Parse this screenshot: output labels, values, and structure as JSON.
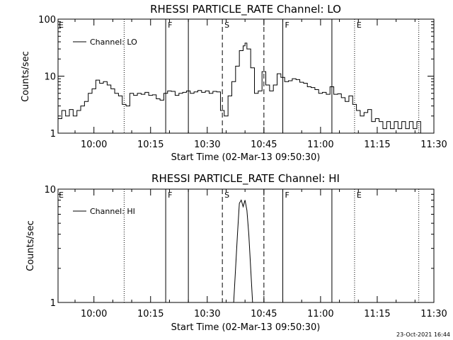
{
  "chart_data": [
    {
      "type": "line",
      "title": "RHESSI PARTICLE_RATE Channel: LO",
      "xlabel": "Start Time (02-Mar-13 09:50:30)",
      "ylabel": "Counts/sec",
      "yscale": "log",
      "ylim": [
        1,
        100
      ],
      "xlim": [
        "09:50:30",
        "11:30:00"
      ],
      "ytick_labels": [
        "1",
        "10",
        "100"
      ],
      "yticks": [
        1,
        10,
        100
      ],
      "xtick_labels": [
        "10:00",
        "10:15",
        "10:30",
        "10:45",
        "11:00",
        "11:15",
        "11:30"
      ],
      "legend": {
        "label": "Channel: LO",
        "placement": "top-left"
      },
      "markers": [
        {
          "label": "E",
          "time": "09:50:30",
          "style": "none"
        },
        {
          "label": "",
          "time": "10:08",
          "style": "dotted"
        },
        {
          "label": "F",
          "time": "10:19",
          "style": "solid"
        },
        {
          "label": "",
          "time": "10:25",
          "style": "solid"
        },
        {
          "label": "S",
          "time": "10:34",
          "style": "dashed"
        },
        {
          "label": "",
          "time": "10:45",
          "style": "dashed"
        },
        {
          "label": "F",
          "time": "10:50",
          "style": "solid"
        },
        {
          "label": "",
          "time": "11:03",
          "style": "solid"
        },
        {
          "label": "E",
          "time": "11:09",
          "style": "dotted"
        },
        {
          "label": "",
          "time": "11:26",
          "style": "dotted"
        }
      ],
      "series": [
        {
          "name": "Channel: LO",
          "x": [
            "09:50:30",
            "09:51:30",
            "09:52:30",
            "09:53:30",
            "09:54:30",
            "09:55:30",
            "09:56:30",
            "09:57:30",
            "09:58:30",
            "09:59:30",
            "10:00:30",
            "10:01:30",
            "10:02:30",
            "10:03:30",
            "10:04:30",
            "10:05:30",
            "10:06:30",
            "10:07:30",
            "10:08:30",
            "10:09:30",
            "10:10:30",
            "10:11:30",
            "10:12:30",
            "10:13:30",
            "10:14:30",
            "10:15:30",
            "10:16:30",
            "10:17:30",
            "10:18:30",
            "10:19:30",
            "10:20:30",
            "10:21:30",
            "10:22:30",
            "10:23:30",
            "10:24:30",
            "10:25:30",
            "10:26:30",
            "10:27:30",
            "10:28:30",
            "10:29:30",
            "10:30:30",
            "10:31:30",
            "10:32:30",
            "10:33:30",
            "10:34:30",
            "10:35:30",
            "10:36:30",
            "10:37:30",
            "10:38:30",
            "10:39:30",
            "10:40:00",
            "10:40:30",
            "10:41:30",
            "10:42:30",
            "10:43:30",
            "10:44:30",
            "10:45:30",
            "10:46:30",
            "10:47:30",
            "10:48:30",
            "10:49:30",
            "10:50:30",
            "10:51:30",
            "10:52:30",
            "10:53:30",
            "10:54:30",
            "10:55:30",
            "10:56:30",
            "10:57:30",
            "10:58:30",
            "10:59:30",
            "11:00:30",
            "11:01:30",
            "11:02:30",
            "11:03:30",
            "11:04:30",
            "11:05:30",
            "11:06:30",
            "11:07:30",
            "11:08:30",
            "11:09:30",
            "11:10:30",
            "11:11:30",
            "11:12:30",
            "11:13:30",
            "11:14:30",
            "11:15:30",
            "11:16:30",
            "11:17:30",
            "11:18:30",
            "11:19:30",
            "11:20:30",
            "11:21:30",
            "11:22:30",
            "11:23:30",
            "11:24:30",
            "11:25:30",
            "11:26:30"
          ],
          "y": [
            1.8,
            2.5,
            2,
            2.6,
            2,
            2.5,
            3,
            3.6,
            5,
            6,
            8.5,
            7.5,
            8,
            7,
            6,
            5,
            4.5,
            3.2,
            3,
            5,
            4.6,
            5,
            4.8,
            5.2,
            4.6,
            4.7,
            4,
            3.8,
            5,
            5.5,
            5.4,
            4.6,
            5,
            5.2,
            5.5,
            5,
            5.3,
            5.6,
            5.2,
            5.5,
            5,
            5.4,
            5.3,
            2.5,
            2,
            4.5,
            8,
            15,
            28,
            34,
            38,
            30,
            14,
            5,
            5.5,
            12,
            7,
            5.5,
            7,
            11,
            9.5,
            8,
            8.3,
            9,
            8.7,
            7.8,
            7.5,
            6.5,
            6.3,
            5.8,
            5,
            5.2,
            4.8,
            6.5,
            4.8,
            4.9,
            4.2,
            3.6,
            4.5,
            3.2,
            2.5,
            2,
            2.3,
            2.6,
            1.6,
            1.8,
            1.6,
            1.2,
            1.6,
            1.2,
            1.6,
            1.2,
            1.6,
            1.2,
            1.6,
            1.2,
            1.6,
            1
          ]
        }
      ]
    },
    {
      "type": "line",
      "title": "RHESSI PARTICLE_RATE Channel: HI",
      "xlabel": "Start Time (02-Mar-13 09:50:30)",
      "ylabel": "Counts/sec",
      "yscale": "log",
      "ylim": [
        1,
        10
      ],
      "xlim": [
        "09:50:30",
        "11:30:00"
      ],
      "ytick_labels": [
        "1",
        "10"
      ],
      "yticks": [
        1,
        10
      ],
      "xtick_labels": [
        "10:00",
        "10:15",
        "10:30",
        "10:45",
        "11:00",
        "11:15",
        "11:30"
      ],
      "legend": {
        "label": "Channel: HI",
        "placement": "top-left"
      },
      "markers": [
        {
          "label": "E",
          "time": "09:50:30",
          "style": "none"
        },
        {
          "label": "",
          "time": "10:08",
          "style": "dotted"
        },
        {
          "label": "F",
          "time": "10:19",
          "style": "solid"
        },
        {
          "label": "",
          "time": "10:25",
          "style": "solid"
        },
        {
          "label": "S",
          "time": "10:34",
          "style": "dashed"
        },
        {
          "label": "",
          "time": "10:45",
          "style": "dashed"
        },
        {
          "label": "F",
          "time": "10:50",
          "style": "solid"
        },
        {
          "label": "",
          "time": "11:03",
          "style": "solid"
        },
        {
          "label": "E",
          "time": "11:09",
          "style": "dotted"
        },
        {
          "label": "",
          "time": "11:26",
          "style": "dotted"
        }
      ],
      "series": [
        {
          "name": "Channel: HI",
          "x": [
            "10:37:00",
            "10:37:30",
            "10:38:00",
            "10:38:30",
            "10:39:00",
            "10:39:30",
            "10:40:00",
            "10:40:30",
            "10:41:00",
            "10:41:30",
            "10:42:00"
          ],
          "y": [
            1,
            2,
            4,
            7.5,
            8,
            7,
            8,
            6.5,
            4,
            2,
            1
          ]
        }
      ]
    }
  ],
  "timestamp": "23-Oct-2021 16:44"
}
